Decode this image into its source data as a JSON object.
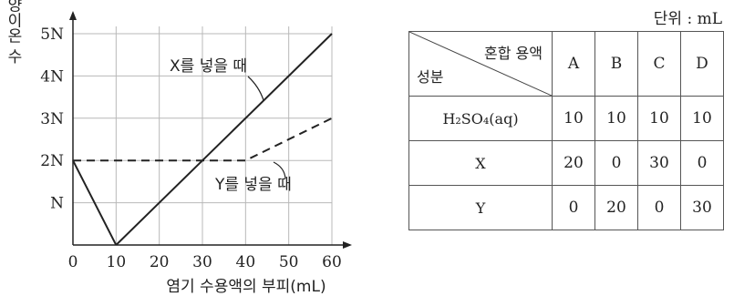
{
  "chart_data": {
    "type": "line",
    "ylabel": "총 양이온 수",
    "xlabel": "염기 수용액의 부피(mL)",
    "x_ticks": [
      "0",
      "10",
      "20",
      "30",
      "40",
      "50",
      "60"
    ],
    "y_ticks": [
      "N",
      "2N",
      "3N",
      "4N",
      "5N"
    ],
    "xlim": [
      0,
      60
    ],
    "ylim": [
      0,
      5
    ],
    "grid": true,
    "series": [
      {
        "name": "X를 넣을 때",
        "style": "solid",
        "x": [
          10,
          60
        ],
        "y": [
          0,
          5
        ]
      },
      {
        "name": "Y를 넣을 때",
        "style": "dashed",
        "x": [
          0,
          40,
          60
        ],
        "y": [
          2,
          2,
          3
        ]
      },
      {
        "name": "",
        "style": "solid",
        "x": [
          0,
          10
        ],
        "y": [
          2,
          0
        ]
      }
    ]
  },
  "table": {
    "unit": "단위 : mL",
    "corner_top": "혼합 용액",
    "corner_bottom": "성분",
    "columns": [
      "A",
      "B",
      "C",
      "D"
    ],
    "rows": [
      {
        "label": "H₂SO₄(aq)",
        "values": [
          "10",
          "10",
          "10",
          "10"
        ]
      },
      {
        "label": "X",
        "values": [
          "20",
          "0",
          "30",
          "0"
        ]
      },
      {
        "label": "Y",
        "values": [
          "0",
          "20",
          "0",
          "30"
        ]
      }
    ]
  }
}
